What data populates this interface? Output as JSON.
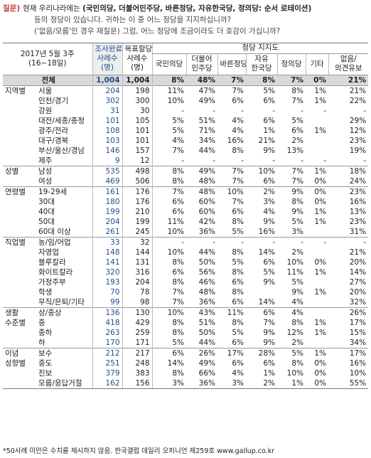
{
  "question": {
    "tag": "질문)",
    "line1_pre": "현재 우리나라에는 ",
    "line1_bold": "(국민의당, 더불어민주당, 바른정당, 자유한국당, 정의당: 순서 로테이션)",
    "line2": "등의 정당이 있습니다. 귀하는 이 중 어느 정당을 지지하십니까?",
    "line3": "('없음/모름'인 경우 재질문) 그럼, 어느 정당에 조금이라도 더 호감이 가십니까?"
  },
  "header": {
    "date": "2017년 5월 3주",
    "date_sub": "(16~18일)",
    "col1_a": "조사완료",
    "col1_b": "사례수",
    "col1_c": "(명)",
    "col2_a": "목표할당",
    "col2_b": "사례수",
    "col2_c": "(명)",
    "support": "정당 지지도",
    "parties": [
      "국민의당",
      "더불어\n민주당",
      "바른정당",
      "자유\n한국당",
      "정의당",
      "기타",
      "없음/\n의견유보"
    ]
  },
  "total": {
    "label": "전체",
    "done": "1,004",
    "target": "1,004",
    "vals": [
      "8%",
      "48%",
      "7%",
      "8%",
      "7%",
      "0%",
      "21%"
    ]
  },
  "groups": [
    {
      "name": "지역별",
      "rows": [
        {
          "label": "서울",
          "done": "204",
          "target": "198",
          "vals": [
            "11%",
            "47%",
            "7%",
            "5%",
            "8%",
            "1%",
            "21%"
          ]
        },
        {
          "label": "인천/경기",
          "done": "302",
          "target": "300",
          "vals": [
            "10%",
            "49%",
            "6%",
            "6%",
            "7%",
            "1%",
            "22%"
          ]
        },
        {
          "label": "강원",
          "done": "31",
          "target": "30",
          "vals": [
            "-",
            "-",
            "-",
            "-",
            "-",
            "-",
            "-"
          ]
        },
        {
          "label": "대전/세종/충청",
          "done": "101",
          "target": "105",
          "vals": [
            "5%",
            "51%",
            "4%",
            "6%",
            "5%",
            "",
            "29%"
          ]
        },
        {
          "label": "광주/전라",
          "done": "108",
          "target": "101",
          "vals": [
            "5%",
            "71%",
            "4%",
            "1%",
            "6%",
            "1%",
            "12%"
          ]
        },
        {
          "label": "대구/경북",
          "done": "103",
          "target": "101",
          "vals": [
            "4%",
            "34%",
            "16%",
            "21%",
            "2%",
            "",
            "23%"
          ]
        },
        {
          "label": "부산/울산/경남",
          "done": "146",
          "target": "157",
          "vals": [
            "7%",
            "44%",
            "8%",
            "9%",
            "13%",
            "",
            "19%"
          ]
        },
        {
          "label": "제주",
          "done": "9",
          "target": "12",
          "vals": [
            "-",
            "-",
            "-",
            "-",
            "-",
            "-",
            "-"
          ]
        }
      ]
    },
    {
      "name": "성별",
      "rows": [
        {
          "label": "남성",
          "done": "535",
          "target": "498",
          "vals": [
            "8%",
            "49%",
            "7%",
            "10%",
            "7%",
            "1%",
            "18%"
          ]
        },
        {
          "label": "여성",
          "done": "469",
          "target": "506",
          "vals": [
            "8%",
            "48%",
            "7%",
            "6%",
            "7%",
            "0%",
            "24%"
          ]
        }
      ]
    },
    {
      "name": "연령별",
      "rows": [
        {
          "label": "19-29세",
          "done": "161",
          "target": "176",
          "vals": [
            "7%",
            "48%",
            "10%",
            "2%",
            "9%",
            "0%",
            "23%"
          ]
        },
        {
          "label": "30대",
          "done": "180",
          "target": "176",
          "vals": [
            "6%",
            "60%",
            "7%",
            "3%",
            "8%",
            "0%",
            "16%"
          ]
        },
        {
          "label": "40대",
          "done": "199",
          "target": "210",
          "vals": [
            "6%",
            "60%",
            "6%",
            "4%",
            "9%",
            "1%",
            "13%"
          ]
        },
        {
          "label": "50대",
          "done": "204",
          "target": "199",
          "vals": [
            "11%",
            "42%",
            "8%",
            "9%",
            "5%",
            "1%",
            "23%"
          ]
        },
        {
          "label": "60대 이상",
          "done": "261",
          "target": "245",
          "vals": [
            "10%",
            "36%",
            "5%",
            "16%",
            "3%",
            "",
            "31%"
          ]
        }
      ]
    },
    {
      "name": "직업별",
      "rows": [
        {
          "label": "농/임/어업",
          "done": "33",
          "target": "32",
          "vals": [
            "-",
            "-",
            "-",
            "-",
            "-",
            "-",
            "-"
          ]
        },
        {
          "label": "자영업",
          "done": "148",
          "target": "144",
          "vals": [
            "10%",
            "44%",
            "8%",
            "14%",
            "2%",
            "",
            "21%"
          ]
        },
        {
          "label": "블루칼라",
          "done": "141",
          "target": "131",
          "vals": [
            "8%",
            "50%",
            "5%",
            "6%",
            "10%",
            "0%",
            "20%"
          ]
        },
        {
          "label": "화이트칼라",
          "done": "320",
          "target": "316",
          "vals": [
            "6%",
            "56%",
            "8%",
            "5%",
            "11%",
            "1%",
            "14%"
          ]
        },
        {
          "label": "가정주부",
          "done": "193",
          "target": "204",
          "vals": [
            "8%",
            "46%",
            "6%",
            "9%",
            "5%",
            "",
            "27%"
          ]
        },
        {
          "label": "학생",
          "done": "70",
          "target": "78",
          "vals": [
            "7%",
            "48%",
            "8%",
            "",
            "9%",
            "1%",
            "20%"
          ]
        },
        {
          "label": "무직/은퇴/기타",
          "done": "99",
          "target": "98",
          "vals": [
            "7%",
            "36%",
            "6%",
            "14%",
            "4%",
            "",
            "32%"
          ]
        }
      ]
    },
    {
      "name": "생활",
      "name2": "수준별",
      "rows": [
        {
          "label": "상/중상",
          "done": "136",
          "target": "130",
          "vals": [
            "10%",
            "43%",
            "11%",
            "6%",
            "4%",
            "",
            "26%"
          ]
        },
        {
          "label": "중",
          "done": "418",
          "target": "429",
          "vals": [
            "8%",
            "51%",
            "8%",
            "7%",
            "8%",
            "1%",
            "17%"
          ]
        },
        {
          "label": "중하",
          "done": "263",
          "target": "259",
          "vals": [
            "8%",
            "50%",
            "5%",
            "9%",
            "12%",
            "1%",
            "15%"
          ]
        },
        {
          "label": "하",
          "done": "170",
          "target": "171",
          "vals": [
            "5%",
            "44%",
            "6%",
            "9%",
            "2%",
            "",
            "34%"
          ]
        }
      ]
    },
    {
      "name": "이념",
      "name2": "성향별",
      "rows": [
        {
          "label": "보수",
          "done": "212",
          "target": "217",
          "vals": [
            "6%",
            "26%",
            "17%",
            "28%",
            "5%",
            "1%",
            "17%"
          ]
        },
        {
          "label": "중도",
          "done": "251",
          "target": "248",
          "vals": [
            "14%",
            "49%",
            "6%",
            "6%",
            "8%",
            "0%",
            "16%"
          ]
        },
        {
          "label": "진보",
          "done": "379",
          "target": "383",
          "vals": [
            "8%",
            "66%",
            "4%",
            "1%",
            "10%",
            "0%",
            "10%"
          ]
        },
        {
          "label": "모름/응답거절",
          "done": "162",
          "target": "156",
          "vals": [
            "3%",
            "36%",
            "3%",
            "2%",
            "1%",
            "0%",
            "55%"
          ]
        }
      ]
    }
  ],
  "footnote": "*50사례 미만은 수치를 제시하지 않음. 한국갤럽 데일리 오피니언 제259호 www.gallup.co.kr"
}
